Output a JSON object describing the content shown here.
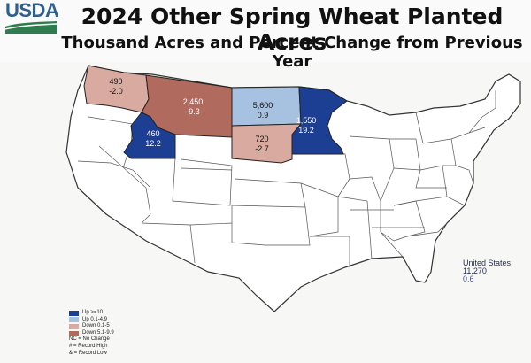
{
  "logo": {
    "text": "USDA"
  },
  "title": "2024 Other Spring Wheat Planted Acres",
  "subtitle": "Thousand Acres and Percent Change from Previous Year",
  "colors": {
    "up_ge_10": "#1c3f94",
    "up_0_1_to_4_9": "#a7c1e0",
    "down_0_1_to_5": "#d9aaa0",
    "down_5_1_to_9_9": "#b06a5e",
    "base": "#ffffff",
    "border": "#333333"
  },
  "states": {
    "wa": {
      "acres": "490",
      "change": "-2.0"
    },
    "mt": {
      "acres": "2,450",
      "change": "-9.3"
    },
    "id": {
      "acres": "460",
      "change": "12.2"
    },
    "nd": {
      "acres": "5,600",
      "change": "0.9"
    },
    "sd": {
      "acres": "720",
      "change": "-2.7"
    },
    "mn": {
      "acres": "1,550",
      "change": "19.2"
    }
  },
  "united_states": {
    "label": "United States",
    "acres": "11,270",
    "change": "0.6"
  },
  "legend": {
    "items": [
      {
        "label": "Up >=10",
        "color_key": "up_ge_10"
      },
      {
        "label": "Up 0.1-4.9",
        "color_key": "up_0_1_to_4_9"
      },
      {
        "label": "Down 0.1-5",
        "color_key": "down_0_1_to_5"
      },
      {
        "label": "Down 5.1-9.9",
        "color_key": "down_5_1_to_9_9"
      }
    ],
    "notes": [
      "NC = No Change",
      "# = Record High",
      "& = Record Low"
    ]
  }
}
